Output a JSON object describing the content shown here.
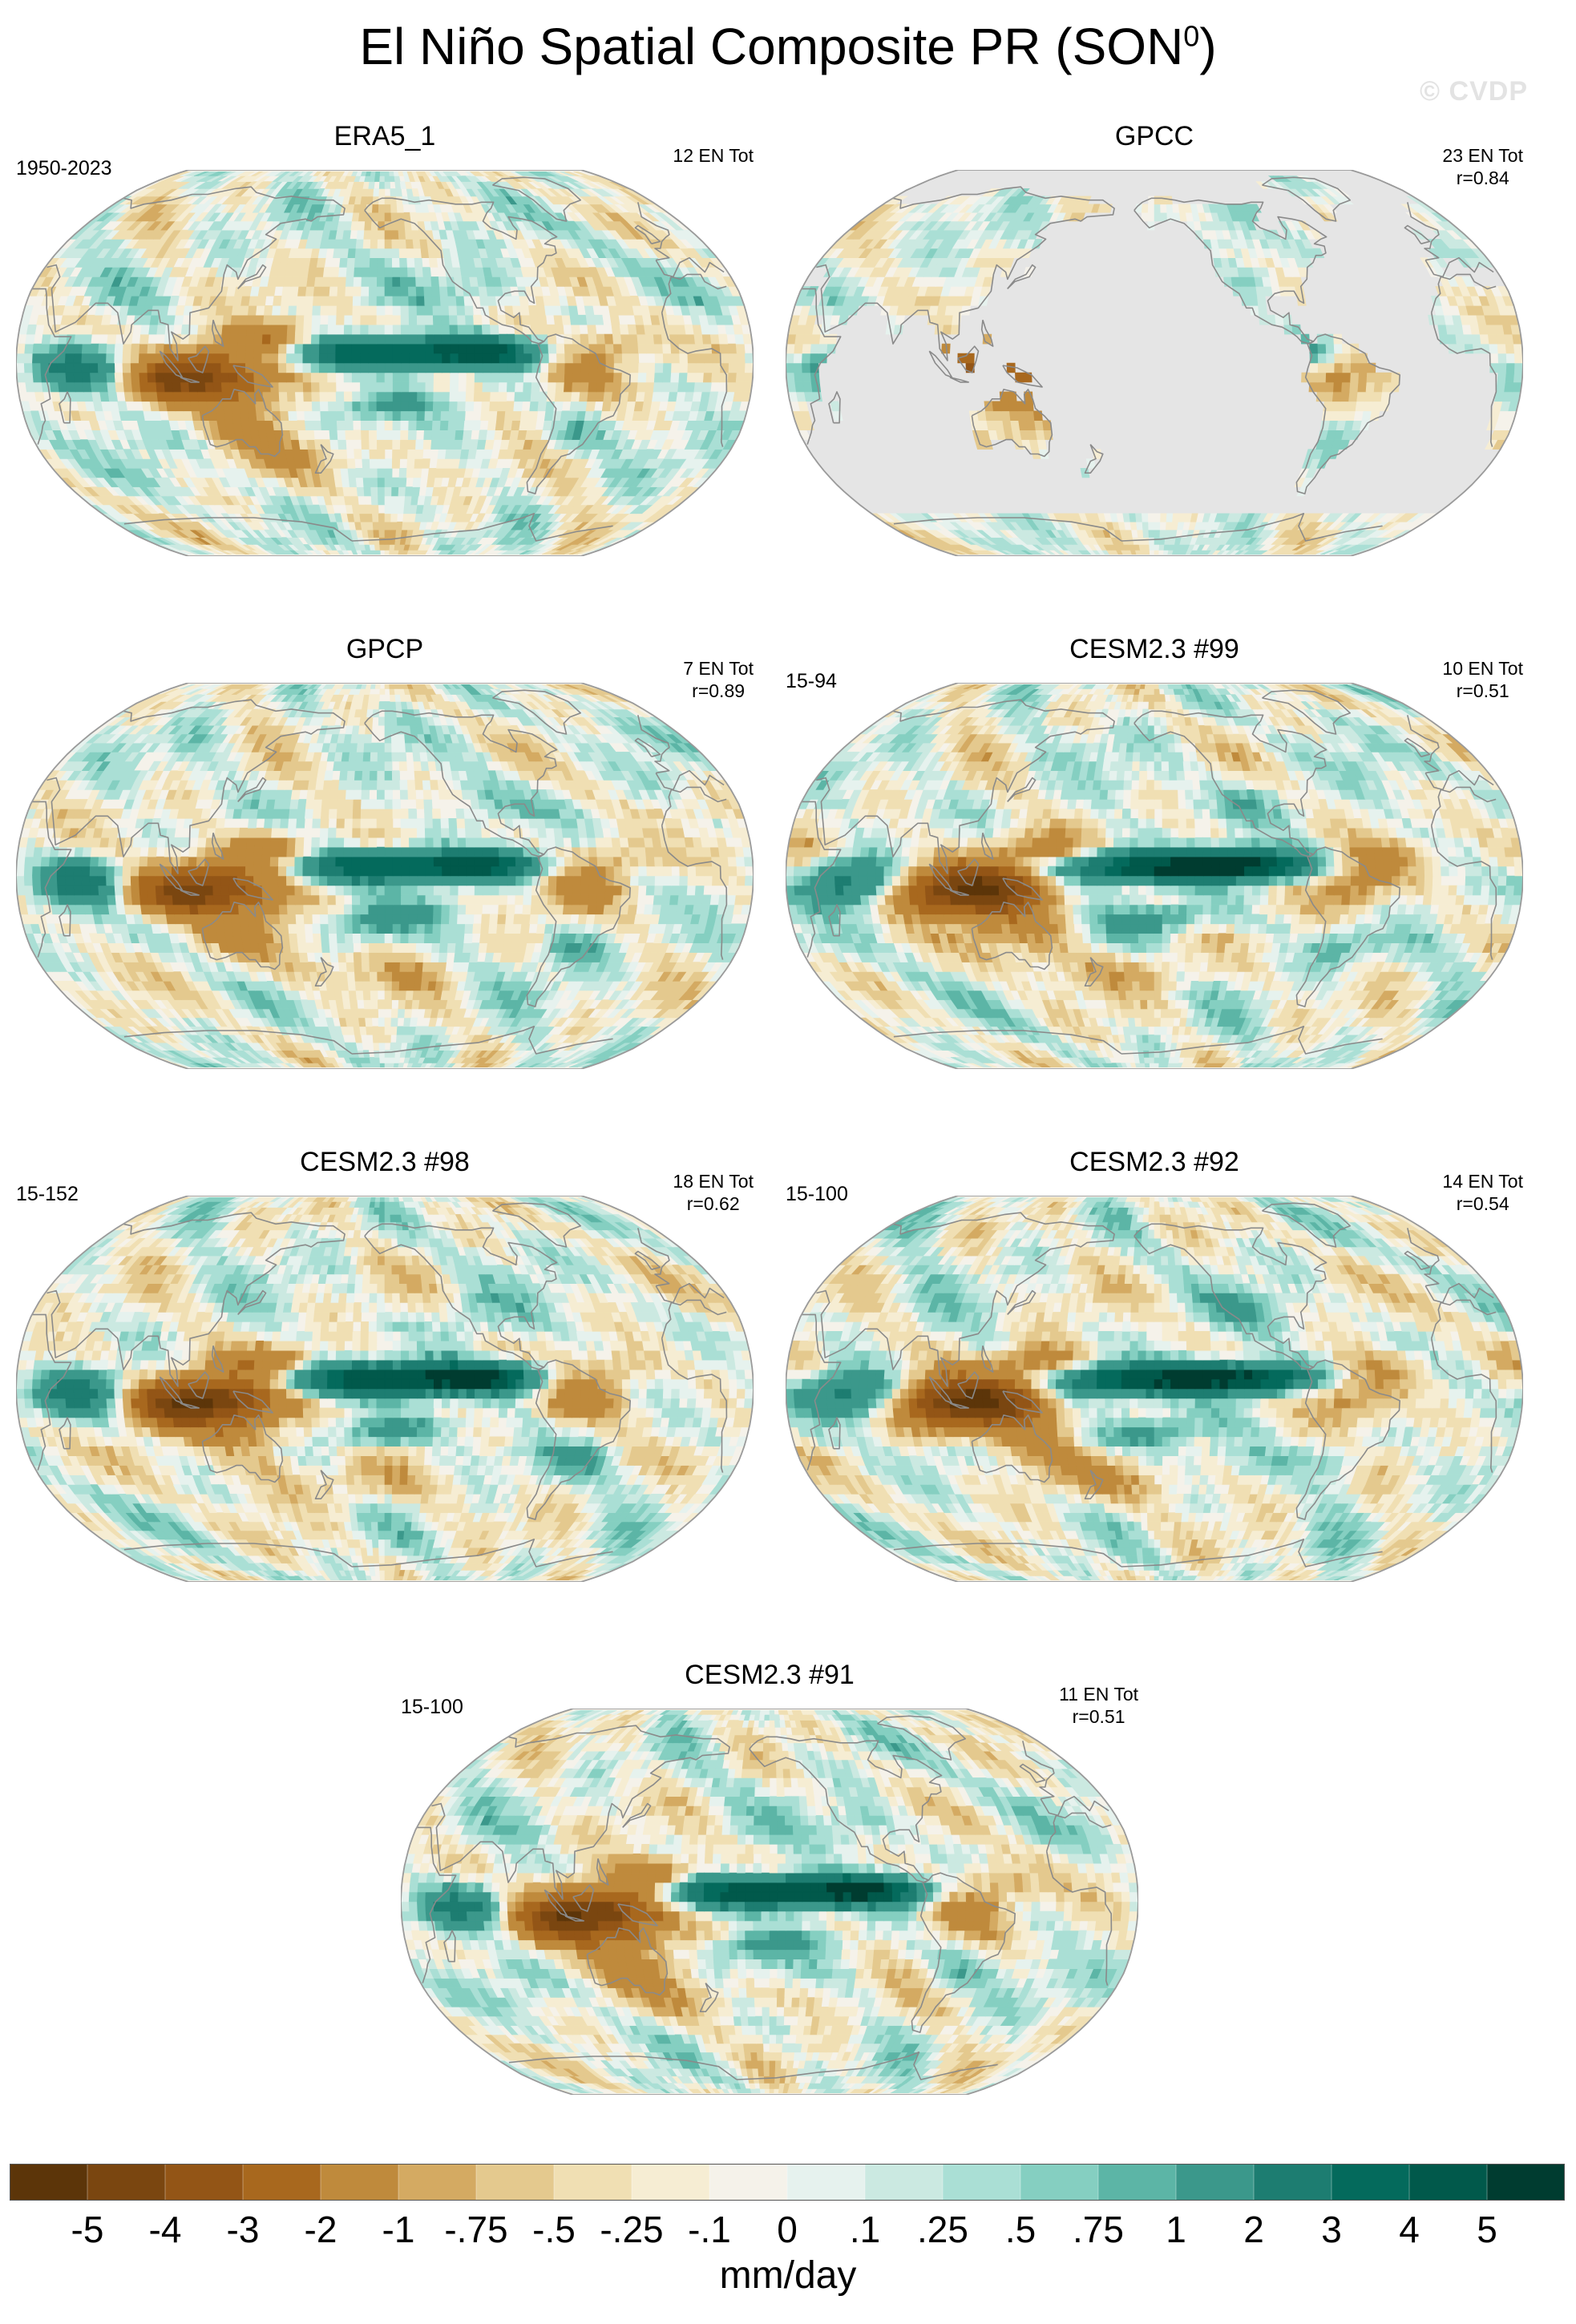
{
  "figure": {
    "title_main": "El Niño Spatial Composite PR (SON",
    "title_sup": "0",
    "title_end": ")",
    "copyright": "© CVDP"
  },
  "colors": {
    "land_outline": "#8a8a8a",
    "missing": "#e5e5e5",
    "map_border": "#9a9a9a"
  },
  "chart_data": {
    "type": "heatmap",
    "projection": "Robinson (Pacific-centered)",
    "variable": "PR",
    "season": "SON",
    "units": "mm/day",
    "colorbar": {
      "labels": [
        "-5",
        "-4",
        "-3",
        "-2",
        "-1",
        "-.75",
        "-.5",
        "-.25",
        "-.1",
        "0",
        ".1",
        ".25",
        ".5",
        ".75",
        "1",
        "2",
        "3",
        "4",
        "5"
      ],
      "values": [
        -5,
        -4,
        -3,
        -2,
        -1,
        -0.75,
        -0.5,
        -0.25,
        -0.1,
        0,
        0.1,
        0.25,
        0.5,
        0.75,
        1,
        2,
        3,
        4,
        5
      ],
      "colors": [
        "#5c3509",
        "#7a4610",
        "#935516",
        "#a8681e",
        "#bf8a3c",
        "#d4aa62",
        "#e4c98e",
        "#f0dfb3",
        "#f6edd3",
        "#f5f2ea",
        "#e6f2ee",
        "#cbe9e1",
        "#aadfd5",
        "#85cfc1",
        "#5cb5a6",
        "#3b988b",
        "#1d7d71",
        "#046a5c",
        "#01594b",
        "#003c30"
      ],
      "unit_label": "mm/day"
    },
    "panels": [
      {
        "name": "ERA5_1",
        "years": "1950-2023",
        "events": "12 EN Tot",
        "corr": "",
        "style": "era5",
        "coverage": "global"
      },
      {
        "name": "GPCC",
        "years": "",
        "events": "23 EN Tot",
        "corr": "r=0.84",
        "style": "gpcc",
        "coverage": "land"
      },
      {
        "name": "GPCP",
        "years": "",
        "events": "7 EN Tot",
        "corr": "r=0.89",
        "style": "gpcp",
        "coverage": "global"
      },
      {
        "name": "CESM2.3 #99",
        "years": "15-94",
        "events": "10 EN Tot",
        "corr": "r=0.51",
        "style": "model",
        "coverage": "global"
      },
      {
        "name": "CESM2.3 #98",
        "years": "15-152",
        "events": "18 EN Tot",
        "corr": "r=0.62",
        "style": "model",
        "coverage": "global"
      },
      {
        "name": "CESM2.3 #92",
        "years": "15-100",
        "events": "14 EN Tot",
        "corr": "r=0.54",
        "style": "model",
        "coverage": "global"
      },
      {
        "name": "CESM2.3 #91",
        "years": "15-100",
        "events": "11 EN Tot",
        "corr": "r=0.51",
        "style": "model",
        "coverage": "global"
      }
    ]
  }
}
